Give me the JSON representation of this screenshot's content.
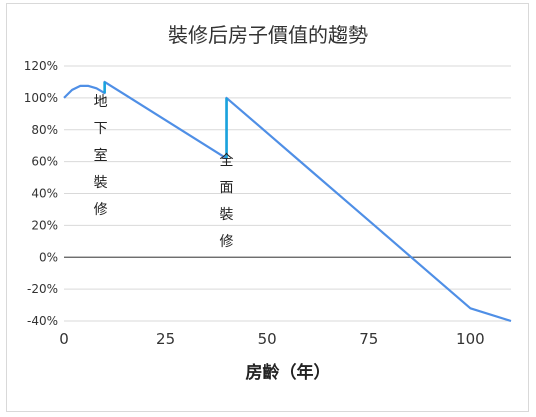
{
  "chart_data": {
    "type": "line",
    "title": "裝修后房子價值的趨勢",
    "xlabel": "房齡（年）",
    "ylabel": "",
    "xlim": [
      0,
      110
    ],
    "ylim": [
      -40,
      120
    ],
    "xticks": [
      0,
      25,
      50,
      75,
      100
    ],
    "yticks": [
      -40,
      -20,
      0,
      20,
      40,
      60,
      80,
      100,
      120
    ],
    "ytick_labels": [
      "-40%",
      "-20%",
      "0%",
      "20%",
      "40%",
      "60%",
      "80%",
      "100%",
      "120%"
    ],
    "grid": true,
    "color": "#4f8fe6",
    "jump_color": "#1aa3dc",
    "series": [
      {
        "x": [
          0,
          2,
          4,
          6,
          8,
          10,
          10,
          15,
          20,
          25,
          30,
          35,
          40,
          40,
          50,
          60,
          70,
          80,
          90,
          100,
          110
        ],
        "values": [
          100,
          105,
          107.5,
          107.5,
          106,
          103,
          110,
          102,
          94,
          86,
          78,
          70,
          62,
          100,
          78,
          56,
          34,
          12,
          -10,
          -32,
          -40
        ]
      }
    ],
    "annotations": [
      {
        "text": "地下室裝修",
        "x": 9,
        "y": 95,
        "vertical": true
      },
      {
        "text": "全面裝修",
        "x": 40,
        "y": 58,
        "vertical": true
      }
    ]
  }
}
